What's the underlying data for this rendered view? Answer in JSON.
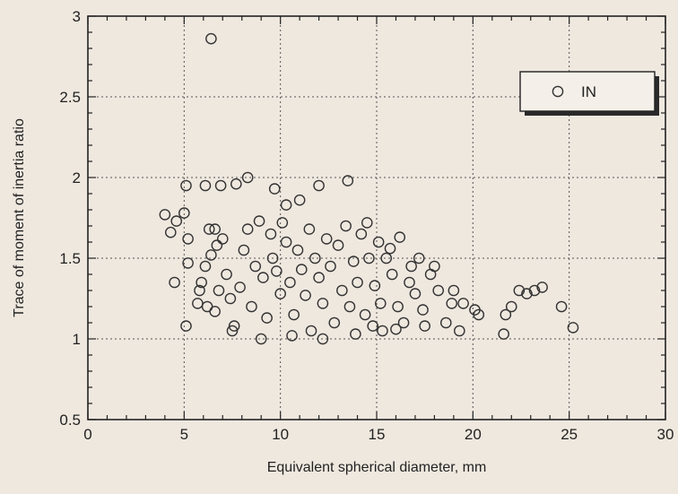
{
  "chart_data": {
    "type": "scatter",
    "title": "",
    "xlabel": "Equivalent spherical diameter, mm",
    "ylabel": "Trace of moment of inertia ratio",
    "xlim": [
      0,
      30
    ],
    "ylim": [
      0.5,
      3
    ],
    "xticks": [
      0,
      5,
      10,
      15,
      20,
      25,
      30
    ],
    "yticks": [
      0.5,
      1,
      1.5,
      2,
      2.5,
      3
    ],
    "xtick_labels": [
      "0",
      "5",
      "10",
      "15",
      "20",
      "25",
      "30"
    ],
    "ytick_labels": [
      "0.5",
      "1",
      "1.5",
      "2",
      "2.5",
      "3"
    ],
    "grid": true,
    "legend_position": "top-right",
    "series": [
      {
        "name": "IN",
        "marker": "open-circle",
        "color": "#333333",
        "points": [
          [
            6.4,
            2.86
          ],
          [
            5.1,
            1.95
          ],
          [
            6.1,
            1.95
          ],
          [
            6.9,
            1.95
          ],
          [
            7.7,
            1.96
          ],
          [
            8.3,
            2.0
          ],
          [
            9.7,
            1.93
          ],
          [
            12.0,
            1.95
          ],
          [
            13.5,
            1.98
          ],
          [
            4.0,
            1.77
          ],
          [
            4.6,
            1.73
          ],
          [
            4.3,
            1.66
          ],
          [
            5.2,
            1.62
          ],
          [
            5.0,
            1.78
          ],
          [
            6.3,
            1.68
          ],
          [
            6.6,
            1.68
          ],
          [
            10.3,
            1.83
          ],
          [
            11.0,
            1.86
          ],
          [
            4.5,
            1.35
          ],
          [
            5.2,
            1.47
          ],
          [
            5.1,
            1.08
          ],
          [
            6.2,
            1.2
          ],
          [
            5.8,
            1.3
          ],
          [
            6.8,
            1.3
          ],
          [
            6.6,
            1.17
          ],
          [
            5.7,
            1.22
          ],
          [
            5.9,
            1.35
          ],
          [
            6.1,
            1.45
          ],
          [
            6.4,
            1.52
          ],
          [
            6.7,
            1.58
          ],
          [
            7.0,
            1.62
          ],
          [
            7.2,
            1.4
          ],
          [
            7.4,
            1.25
          ],
          [
            7.6,
            1.08
          ],
          [
            7.9,
            1.32
          ],
          [
            8.1,
            1.55
          ],
          [
            8.3,
            1.68
          ],
          [
            8.5,
            1.2
          ],
          [
            8.7,
            1.45
          ],
          [
            8.9,
            1.73
          ],
          [
            9.1,
            1.38
          ],
          [
            9.3,
            1.13
          ],
          [
            9.5,
            1.65
          ],
          [
            9.6,
            1.5
          ],
          [
            9.8,
            1.42
          ],
          [
            10.0,
            1.28
          ],
          [
            10.1,
            1.72
          ],
          [
            10.3,
            1.6
          ],
          [
            10.5,
            1.35
          ],
          [
            10.7,
            1.15
          ],
          [
            10.9,
            1.55
          ],
          [
            11.1,
            1.43
          ],
          [
            11.3,
            1.27
          ],
          [
            11.5,
            1.68
          ],
          [
            11.6,
            1.05
          ],
          [
            11.8,
            1.5
          ],
          [
            12.0,
            1.38
          ],
          [
            12.2,
            1.22
          ],
          [
            12.4,
            1.62
          ],
          [
            12.6,
            1.45
          ],
          [
            12.8,
            1.1
          ],
          [
            13.0,
            1.58
          ],
          [
            13.2,
            1.3
          ],
          [
            13.4,
            1.7
          ],
          [
            13.6,
            1.2
          ],
          [
            13.8,
            1.48
          ],
          [
            14.0,
            1.35
          ],
          [
            14.2,
            1.65
          ],
          [
            14.4,
            1.15
          ],
          [
            14.6,
            1.5
          ],
          [
            14.8,
            1.08
          ],
          [
            14.9,
            1.33
          ],
          [
            15.1,
            1.6
          ],
          [
            15.2,
            1.22
          ],
          [
            15.5,
            1.5
          ],
          [
            15.8,
            1.4
          ],
          [
            16.1,
            1.2
          ],
          [
            16.4,
            1.1
          ],
          [
            16.7,
            1.35
          ],
          [
            17.0,
            1.28
          ],
          [
            17.4,
            1.18
          ],
          [
            17.8,
            1.4
          ],
          [
            18.2,
            1.3
          ],
          [
            18.6,
            1.1
          ],
          [
            7.5,
            1.05
          ],
          [
            9.0,
            1.0
          ],
          [
            10.6,
            1.02
          ],
          [
            12.2,
            1.0
          ],
          [
            13.9,
            1.03
          ],
          [
            15.3,
            1.05
          ],
          [
            16.0,
            1.06
          ],
          [
            17.5,
            1.08
          ],
          [
            16.2,
            1.63
          ],
          [
            16.8,
            1.45
          ],
          [
            14.5,
            1.72
          ],
          [
            15.7,
            1.56
          ],
          [
            19.3,
            1.05
          ],
          [
            19.5,
            1.22
          ],
          [
            20.1,
            1.18
          ],
          [
            20.3,
            1.15
          ],
          [
            21.6,
            1.03
          ],
          [
            21.7,
            1.15
          ],
          [
            22.0,
            1.2
          ],
          [
            22.4,
            1.3
          ],
          [
            22.8,
            1.28
          ],
          [
            23.2,
            1.3
          ],
          [
            23.6,
            1.32
          ],
          [
            24.6,
            1.2
          ],
          [
            25.2,
            1.07
          ],
          [
            19.0,
            1.3
          ],
          [
            18.9,
            1.22
          ],
          [
            18.0,
            1.45
          ],
          [
            17.2,
            1.5
          ]
        ]
      }
    ]
  }
}
